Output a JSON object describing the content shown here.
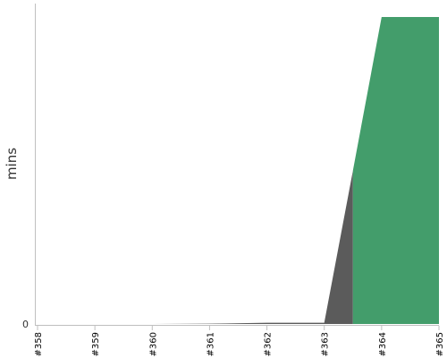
{
  "chart_data": {
    "type": "area",
    "stacked": true,
    "ylabel": "mins",
    "x": [
      "#358",
      "#359",
      "#360",
      "#361",
      "#362",
      "#363",
      "#364",
      "#365"
    ],
    "y_tick_labels": [
      "0"
    ],
    "ylim": [
      0,
      100
    ],
    "grid": false,
    "legend": "none",
    "series": [
      {
        "color": "#5b5b5b",
        "x": [
          0,
          1,
          2,
          3,
          4,
          5,
          5.5
        ],
        "values": [
          0,
          0,
          0,
          0.1,
          0.4,
          0.4,
          49
        ]
      },
      {
        "color": "#439d6b",
        "x": [
          5.5,
          6,
          7
        ],
        "values": [
          49,
          98,
          98
        ]
      }
    ]
  }
}
